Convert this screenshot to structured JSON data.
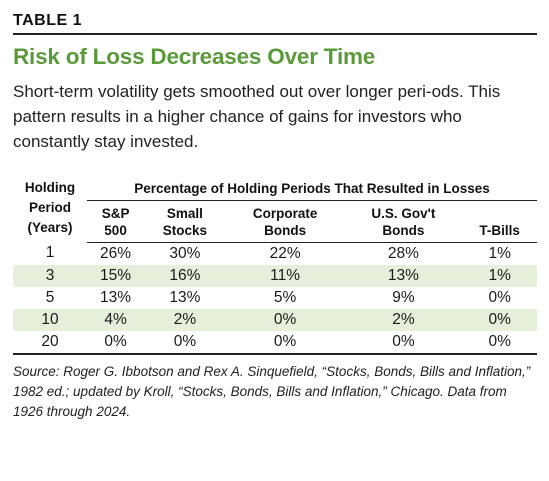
{
  "label": "TABLE 1",
  "title": "Risk of Loss Decreases Over Time",
  "intro": "Short-term volatility gets smoothed out over longer peri-ods. This pattern results in a higher chance of gains for investors who constantly stay invested.",
  "table": {
    "period_header": [
      "Holding",
      "Period",
      "(Years)"
    ],
    "group_header": "Percentage of Holding Periods That Resulted in Losses",
    "columns": [
      [
        "S&P",
        "500"
      ],
      [
        "Small",
        "Stocks"
      ],
      [
        "Corporate",
        "Bonds"
      ],
      [
        "U.S. Gov't",
        "Bonds"
      ],
      [
        "",
        "T-Bills"
      ]
    ],
    "rows": [
      {
        "period": "1",
        "values": [
          "26%",
          "30%",
          "22%",
          "28%",
          "1%"
        ]
      },
      {
        "period": "3",
        "values": [
          "15%",
          "16%",
          "11%",
          "13%",
          "1%"
        ]
      },
      {
        "period": "5",
        "values": [
          "13%",
          "13%",
          "5%",
          "9%",
          "0%"
        ]
      },
      {
        "period": "10",
        "values": [
          "4%",
          "2%",
          "0%",
          "2%",
          "0%"
        ]
      },
      {
        "period": "20",
        "values": [
          "0%",
          "0%",
          "0%",
          "0%",
          "0%"
        ]
      }
    ]
  },
  "source": "Source: Roger G. Ibbotson and Rex A. Sinquefield, “Stocks, Bonds, Bills and Inflation,” 1982 ed.; updated by Kroll, “Stocks, Bonds, Bills and Inflation,” Chicago. Data from 1926 through 2024.",
  "colors": {
    "title": "#5a9a3a",
    "row_shade": "#e6efd9"
  }
}
